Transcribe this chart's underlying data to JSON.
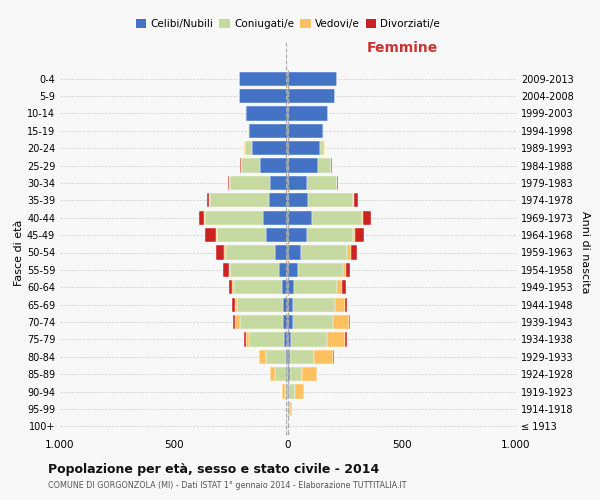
{
  "age_groups": [
    "100+",
    "95-99",
    "90-94",
    "85-89",
    "80-84",
    "75-79",
    "70-74",
    "65-69",
    "60-64",
    "55-59",
    "50-54",
    "45-49",
    "40-44",
    "35-39",
    "30-34",
    "25-29",
    "20-24",
    "15-19",
    "10-14",
    "5-9",
    "0-4"
  ],
  "birth_years": [
    "≤ 1913",
    "1914-1918",
    "1919-1923",
    "1924-1928",
    "1929-1933",
    "1934-1938",
    "1939-1943",
    "1944-1948",
    "1949-1953",
    "1954-1958",
    "1959-1963",
    "1964-1968",
    "1969-1973",
    "1974-1978",
    "1979-1983",
    "1984-1988",
    "1989-1993",
    "1994-1998",
    "1999-2003",
    "2004-2008",
    "2009-2013"
  ],
  "males": {
    "celibi": [
      1,
      1,
      3,
      5,
      10,
      18,
      22,
      22,
      28,
      38,
      58,
      95,
      110,
      85,
      80,
      125,
      160,
      170,
      185,
      215,
      215
    ],
    "coniugati": [
      0,
      2,
      12,
      50,
      85,
      155,
      190,
      200,
      210,
      215,
      215,
      215,
      255,
      255,
      175,
      80,
      30,
      5,
      2,
      2,
      2
    ],
    "vedovi": [
      0,
      2,
      10,
      22,
      32,
      12,
      22,
      12,
      6,
      6,
      6,
      6,
      5,
      5,
      2,
      2,
      5,
      0,
      0,
      0,
      0
    ],
    "divorziati": [
      0,
      0,
      0,
      0,
      0,
      6,
      8,
      10,
      15,
      28,
      38,
      48,
      22,
      12,
      5,
      2,
      0,
      0,
      0,
      0,
      0
    ]
  },
  "females": {
    "nubili": [
      1,
      2,
      5,
      8,
      10,
      15,
      20,
      20,
      25,
      42,
      58,
      82,
      105,
      88,
      82,
      130,
      140,
      155,
      175,
      205,
      215
    ],
    "coniugate": [
      2,
      5,
      25,
      55,
      105,
      155,
      178,
      188,
      192,
      198,
      202,
      202,
      218,
      198,
      132,
      58,
      20,
      5,
      2,
      2,
      2
    ],
    "vedove": [
      2,
      10,
      38,
      65,
      82,
      78,
      68,
      42,
      22,
      15,
      15,
      10,
      5,
      5,
      2,
      2,
      2,
      0,
      0,
      0,
      0
    ],
    "divorziate": [
      0,
      0,
      0,
      0,
      5,
      10,
      8,
      10,
      15,
      15,
      28,
      38,
      38,
      15,
      5,
      2,
      0,
      0,
      0,
      0,
      0
    ]
  },
  "colors": {
    "celibi": "#4472c4",
    "coniugati": "#c5d9a0",
    "vedovi": "#ffc060",
    "divorziati": "#cc2222"
  },
  "title": "Popolazione per età, sesso e stato civile - 2014",
  "subtitle": "COMUNE DI GORGONZOLA (MI) - Dati ISTAT 1° gennaio 2014 - Elaborazione TUTTITALIA.IT",
  "ylabel_left": "Fasce di età",
  "ylabel_right": "Anni di nascita",
  "xlabel_right": "Femmine",
  "xlim": 1000,
  "background_color": "#f8f8f8",
  "grid_color": "#cccccc"
}
